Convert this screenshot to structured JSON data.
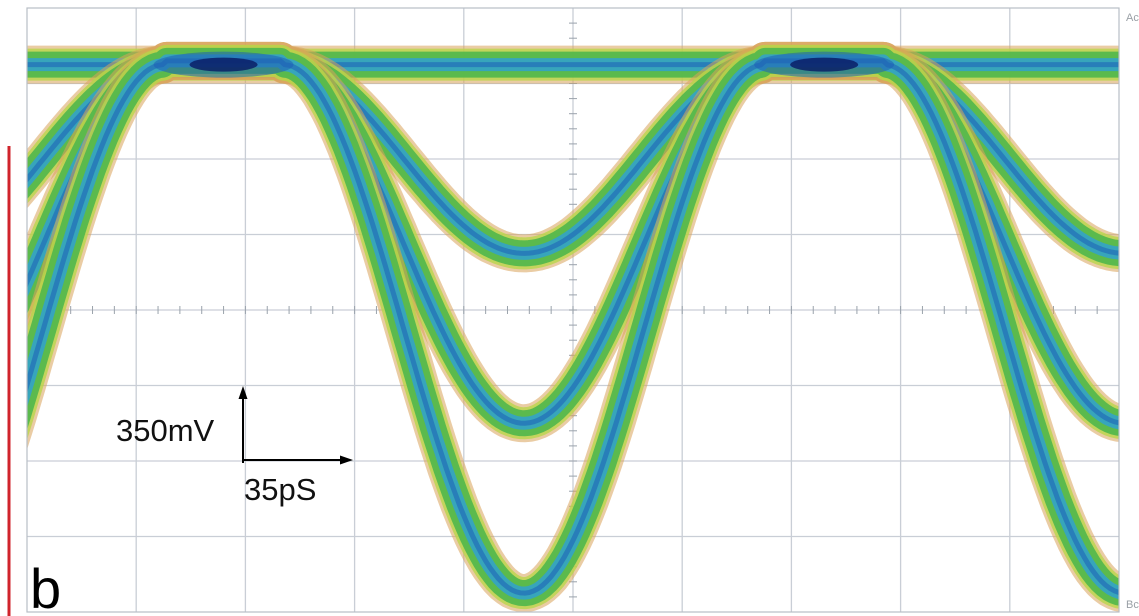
{
  "panel_label": "b",
  "corner_labels": {
    "top_right": "Ac",
    "bottom_right": "Bc"
  },
  "scale_bar": {
    "vertical_label": "350mV",
    "horizontal_label": "35pS"
  },
  "colors": {
    "red_edge": "#d0242c",
    "grid": "#c9ced6",
    "trace_outer": "#d9a35a",
    "trace_fringe": "#b9d64a",
    "trace_mid": "#55b84c",
    "trace_core": "#33a3c8",
    "trace_center": "#1d5fb8",
    "crossing": "#0a1f66"
  },
  "chart_data": {
    "type": "eye-diagram",
    "x_unit": "pS",
    "y_unit": "mV",
    "x_per_division": 35,
    "y_per_division": 350,
    "divisions_x": 10,
    "divisions_y": 8,
    "grid": true,
    "x_range_divisions": [
      0,
      10
    ],
    "y_range_divisions": [
      0,
      8
    ],
    "traces": [
      {
        "shape": "flat-high",
        "level_div": 7.25
      },
      {
        "shape": "dip",
        "min_level_div": 4.75
      },
      {
        "shape": "dip",
        "min_level_div": 2.5
      },
      {
        "shape": "dip",
        "min_level_div": 0.25
      }
    ],
    "crossings_div": [
      1.8,
      7.3
    ]
  }
}
